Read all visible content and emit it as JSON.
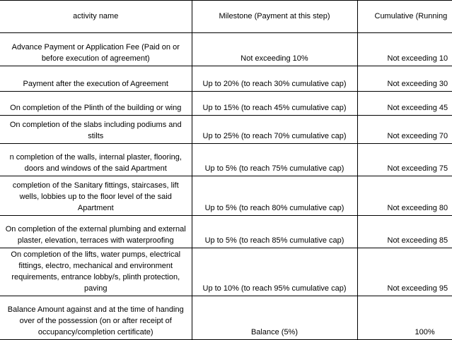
{
  "table": {
    "header": [
      "activity name",
      "Milestone (Payment at this step)",
      "Cumulative (Running"
    ],
    "rows": [
      [
        "Advance Payment or Application Fee (Paid on or\nbefore execution of agreement)",
        "Not exceeding 10%",
        "Not exceeding 10"
      ],
      [
        "Payment after the execution of Agreement",
        "Up to 20% (to reach 30% cumulative cap)",
        "Not exceeding 30"
      ],
      [
        "On completion of the Plinth of the building or wing",
        "Up to 15% (to reach 45% cumulative cap)",
        "Not exceeding 45"
      ],
      [
        "On completion of the slabs including podiums and\nstilts",
        "Up to 25% (to reach 70% cumulative cap)",
        "Not exceeding 70"
      ],
      [
        "n completion of the walls, internal plaster, flooring,\ndoors and windows of the said Apartment",
        "Up to 5% (to reach 75% cumulative cap)",
        "Not exceeding 75"
      ],
      [
        "completion of the Sanitary fittings, staircases, lift\nwells, lobbies up to the floor level of the said\nApartment",
        "Up to 5% (to reach 80% cumulative cap)",
        "Not exceeding 80"
      ],
      [
        "On completion of the external plumbing and external\nplaster, elevation, terraces with waterproofing",
        "Up to 5% (to reach 85% cumulative cap)",
        "Not exceeding 85"
      ],
      [
        "On completion of the lifts, water pumps, electrical\nfittings, electro, mechanical and environment\nrequirements, entrance lobby/s, plinth protection,\npaving",
        "Up to 10% (to reach 95% cumulative cap)",
        "Not exceeding 95"
      ],
      [
        "Balance Amount against and at the time of handing\nover of the possession (on or after receipt of\noccupancy/completion certificate)",
        "Balance (5%)",
        "100%"
      ]
    ]
  }
}
